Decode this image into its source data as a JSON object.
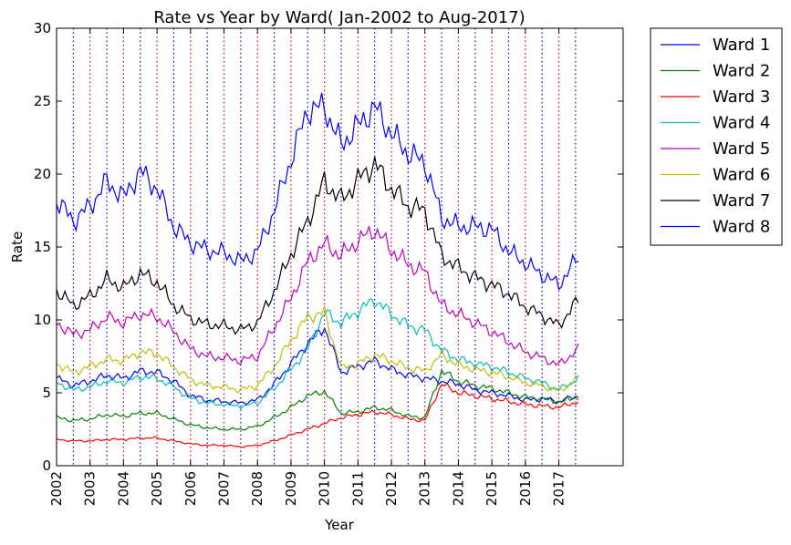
{
  "chart_data": {
    "type": "line",
    "title": "Rate vs Year by Ward( Jan-2002 to Aug-2017)",
    "xlabel": "Year",
    "ylabel": "Rate",
    "xlim": [
      2002.0,
      2018.92
    ],
    "ylim": [
      0,
      30
    ],
    "yticks": [
      0,
      5,
      10,
      15,
      20,
      25,
      30
    ],
    "xtick_labels": [
      "2002",
      "2003",
      "2004",
      "2005",
      "2006",
      "2007",
      "2008",
      "2009",
      "2010",
      "2011",
      "2012",
      "2013",
      "2014",
      "2015",
      "2016",
      "2017"
    ],
    "grid": false,
    "vertical_markers": {
      "description_dates_red": "January of each year (red dotted)",
      "description_dates_blue": "July of each year (blue dotted)",
      "red_color": "#cc0000",
      "blue_color": "#0000cc"
    },
    "legend_position": "outside-right-top",
    "series": [
      {
        "name": "Ward 1",
        "color": "#0000ff",
        "kx": [
          2002.0,
          2002.5,
          2003.0,
          2003.5,
          2004.0,
          2004.5,
          2005.0,
          2005.5,
          2006.0,
          2006.5,
          2007.0,
          2007.5,
          2008.0,
          2008.5,
          2009.0,
          2009.5,
          2010.0,
          2010.5,
          2011.0,
          2011.5,
          2012.0,
          2012.5,
          2013.0,
          2013.5,
          2014.0,
          2014.5,
          2015.0,
          2015.5,
          2016.0,
          2016.5,
          2017.0,
          2017.58
        ],
        "ky": [
          6.0,
          5.5,
          5.8,
          6.2,
          6.0,
          6.5,
          6.4,
          5.8,
          4.8,
          4.5,
          4.4,
          4.3,
          4.5,
          5.6,
          7.0,
          8.4,
          9.5,
          6.4,
          6.8,
          7.2,
          6.6,
          6.2,
          6.0,
          5.8,
          5.6,
          5.2,
          5.0,
          4.8,
          4.5,
          4.6,
          4.4,
          4.8
        ]
      },
      {
        "name": "Ward 2",
        "color": "#008000",
        "kx": [
          2002.0,
          2002.5,
          2003.0,
          2003.5,
          2004.0,
          2004.5,
          2005.0,
          2005.5,
          2006.0,
          2006.5,
          2007.0,
          2007.5,
          2008.0,
          2008.5,
          2009.0,
          2009.5,
          2010.0,
          2010.5,
          2011.0,
          2011.5,
          2012.0,
          2012.5,
          2013.0,
          2013.5,
          2014.0,
          2014.5,
          2015.0,
          2015.5,
          2016.0,
          2016.5,
          2017.0,
          2017.58
        ],
        "ky": [
          3.3,
          3.1,
          3.2,
          3.5,
          3.4,
          3.6,
          3.6,
          3.2,
          2.8,
          2.6,
          2.5,
          2.5,
          2.7,
          3.3,
          4.0,
          4.8,
          5.1,
          3.6,
          3.7,
          4.0,
          3.8,
          3.4,
          3.3,
          6.5,
          5.8,
          5.5,
          5.3,
          5.0,
          4.7,
          4.6,
          4.4,
          4.7
        ]
      },
      {
        "name": "Ward 3",
        "color": "#ff0000",
        "kx": [
          2002.0,
          2002.5,
          2003.0,
          2003.5,
          2004.0,
          2004.5,
          2005.0,
          2005.5,
          2006.0,
          2006.5,
          2007.0,
          2007.5,
          2008.0,
          2008.5,
          2009.0,
          2009.5,
          2010.0,
          2010.5,
          2011.0,
          2011.5,
          2012.0,
          2012.5,
          2013.0,
          2013.5,
          2014.0,
          2014.5,
          2015.0,
          2015.5,
          2016.0,
          2016.5,
          2017.0,
          2017.58
        ],
        "ky": [
          1.8,
          1.7,
          1.7,
          1.8,
          1.8,
          1.9,
          1.9,
          1.7,
          1.5,
          1.4,
          1.4,
          1.3,
          1.4,
          1.7,
          2.1,
          2.5,
          2.9,
          3.3,
          3.5,
          3.7,
          3.5,
          3.2,
          3.1,
          5.6,
          5.0,
          4.8,
          4.6,
          4.4,
          4.2,
          4.1,
          4.0,
          4.4
        ]
      },
      {
        "name": "Ward 4",
        "color": "#00bfbf",
        "kx": [
          2002.0,
          2002.5,
          2003.0,
          2003.5,
          2004.0,
          2004.5,
          2005.0,
          2005.5,
          2006.0,
          2006.5,
          2007.0,
          2007.5,
          2008.0,
          2008.5,
          2009.0,
          2009.5,
          2010.0,
          2010.5,
          2011.0,
          2011.5,
          2012.0,
          2012.5,
          2013.0,
          2013.5,
          2014.0,
          2014.5,
          2015.0,
          2015.5,
          2016.0,
          2016.5,
          2017.0,
          2017.58
        ],
        "ky": [
          5.7,
          5.2,
          5.4,
          5.8,
          5.7,
          6.1,
          6.0,
          5.4,
          4.6,
          4.3,
          4.2,
          4.1,
          4.3,
          5.3,
          6.6,
          8.0,
          10.5,
          9.8,
          10.6,
          11.4,
          10.4,
          9.6,
          9.3,
          7.9,
          7.3,
          7.0,
          6.8,
          6.4,
          6.0,
          5.7,
          5.2,
          6.0
        ]
      },
      {
        "name": "Ward 5",
        "color": "#bf00bf",
        "kx": [
          2002.0,
          2002.5,
          2003.0,
          2003.5,
          2004.0,
          2004.5,
          2005.0,
          2005.5,
          2006.0,
          2006.5,
          2007.0,
          2007.5,
          2008.0,
          2008.5,
          2009.0,
          2009.5,
          2010.0,
          2010.5,
          2011.0,
          2011.5,
          2012.0,
          2012.5,
          2013.0,
          2013.5,
          2014.0,
          2014.5,
          2015.0,
          2015.5,
          2016.0,
          2016.5,
          2017.0,
          2017.58
        ],
        "ky": [
          9.8,
          9.0,
          9.3,
          10.2,
          9.8,
          10.4,
          10.2,
          9.2,
          8.0,
          7.5,
          7.4,
          7.2,
          7.5,
          9.5,
          11.5,
          14.0,
          15.2,
          14.4,
          15.4,
          16.2,
          14.8,
          13.8,
          13.3,
          11.0,
          10.4,
          9.8,
          9.2,
          8.5,
          7.8,
          7.4,
          6.9,
          8.0
        ]
      },
      {
        "name": "Ward 6",
        "color": "#bfbf00",
        "kx": [
          2002.0,
          2002.5,
          2003.0,
          2003.5,
          2004.0,
          2004.5,
          2005.0,
          2005.5,
          2006.0,
          2006.5,
          2007.0,
          2007.5,
          2008.0,
          2008.5,
          2009.0,
          2009.5,
          2010.0,
          2010.5,
          2011.0,
          2011.5,
          2012.0,
          2012.5,
          2013.0,
          2013.5,
          2014.0,
          2014.5,
          2015.0,
          2015.5,
          2016.0,
          2016.5,
          2017.0,
          2017.58
        ],
        "ky": [
          7.0,
          6.4,
          6.8,
          7.3,
          7.2,
          7.8,
          7.7,
          6.8,
          5.9,
          5.5,
          5.4,
          5.2,
          5.5,
          6.8,
          8.6,
          10.2,
          10.5,
          6.7,
          7.0,
          7.6,
          7.2,
          6.7,
          6.5,
          7.6,
          6.9,
          6.6,
          6.4,
          6.1,
          5.7,
          5.5,
          5.1,
          6.0
        ]
      },
      {
        "name": "Ward 7",
        "color": "#000000",
        "kx": [
          2002.0,
          2002.5,
          2003.0,
          2003.5,
          2004.0,
          2004.5,
          2005.0,
          2005.5,
          2006.0,
          2006.5,
          2007.0,
          2007.5,
          2008.0,
          2008.5,
          2009.0,
          2009.5,
          2010.0,
          2010.5,
          2011.0,
          2011.5,
          2012.0,
          2012.5,
          2013.0,
          2013.5,
          2014.0,
          2014.5,
          2015.0,
          2015.5,
          2016.0,
          2016.5,
          2017.0,
          2017.58
        ],
        "ky": [
          12.0,
          11.0,
          11.6,
          12.8,
          12.2,
          13.2,
          12.6,
          11.0,
          10.1,
          9.7,
          9.6,
          9.3,
          9.8,
          12.0,
          14.5,
          16.8,
          19.5,
          18.2,
          19.6,
          20.7,
          19.0,
          17.8,
          17.5,
          14.4,
          13.6,
          12.9,
          12.4,
          11.8,
          10.9,
          10.3,
          9.6,
          11.4
        ]
      },
      {
        "name": "Ward 8",
        "color": "#0000ff",
        "kx": [
          2002.0,
          2002.5,
          2003.0,
          2003.5,
          2004.0,
          2004.5,
          2005.0,
          2005.5,
          2006.0,
          2006.5,
          2007.0,
          2007.5,
          2008.0,
          2008.5,
          2009.0,
          2009.5,
          2010.0,
          2010.5,
          2011.0,
          2011.5,
          2012.0,
          2012.5,
          2013.0,
          2013.5,
          2014.0,
          2014.5,
          2015.0,
          2015.5,
          2016.0,
          2016.5,
          2017.0,
          2017.58
        ],
        "ky": [
          18.2,
          16.8,
          17.8,
          19.5,
          18.4,
          20.2,
          19.0,
          16.4,
          15.3,
          14.8,
          14.6,
          14.0,
          14.7,
          17.5,
          21.0,
          24.4,
          24.6,
          22.0,
          23.3,
          24.6,
          22.8,
          21.4,
          20.8,
          17.0,
          16.4,
          16.4,
          16.2,
          14.7,
          13.9,
          13.1,
          12.4,
          14.3
        ]
      }
    ]
  }
}
